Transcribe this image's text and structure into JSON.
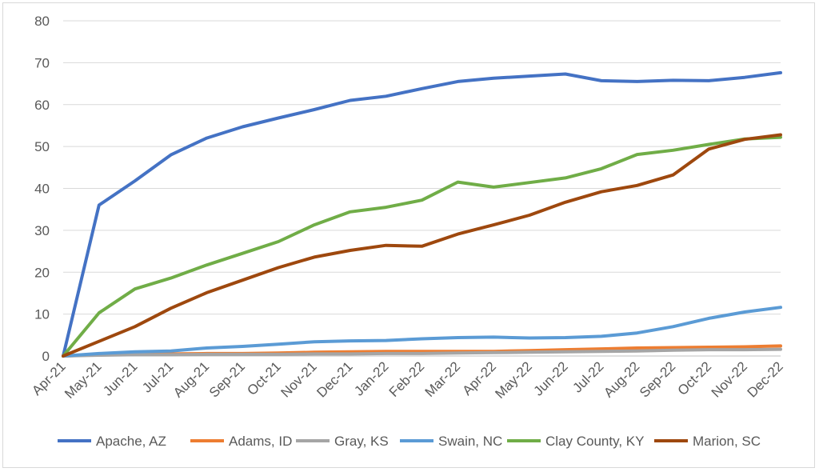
{
  "chart_data": {
    "type": "line",
    "title": "",
    "xlabel": "",
    "ylabel": "",
    "ylim": [
      0,
      80
    ],
    "y_ticks": [
      "0",
      "10",
      "20",
      "30",
      "40",
      "50",
      "60",
      "70",
      "80"
    ],
    "grid": "horizontal",
    "legend_position": "bottom",
    "categories": [
      "Apr-21",
      "May-21",
      "Jun-21",
      "Jul-21",
      "Aug-21",
      "Sep-21",
      "Oct-21",
      "Nov-21",
      "Dec-21",
      "Jan-22",
      "Feb-22",
      "Mar-22",
      "Apr-22",
      "May-22",
      "Jun-22",
      "Jul-22",
      "Aug-22",
      "Sep-22",
      "Oct-22",
      "Nov-22",
      "Dec-22"
    ],
    "series": [
      {
        "name": "Apache, AZ",
        "color": "#4472C4",
        "values": [
          0,
          36,
          41.8,
          48,
          52,
          54.7,
          56.8,
          58.8,
          61,
          62,
          63.8,
          65.5,
          66.3,
          66.8,
          67.3,
          65.7,
          65.5,
          65.8,
          65.7,
          66.5,
          67.6
        ]
      },
      {
        "name": "Adams, ID",
        "color": "#ED7D31",
        "values": [
          0,
          0.3,
          0.4,
          0.5,
          0.6,
          0.6,
          0.7,
          0.9,
          1.0,
          1.1,
          1.1,
          1.1,
          1.1,
          1.3,
          1.5,
          1.7,
          1.9,
          2.0,
          2.1,
          2.2,
          2.4
        ]
      },
      {
        "name": "Gray, KS",
        "color": "#A5A5A5",
        "values": [
          0,
          0.2,
          0.3,
          0.3,
          0.4,
          0.4,
          0.4,
          0.5,
          0.5,
          0.6,
          0.6,
          0.7,
          0.8,
          0.9,
          1.0,
          1.1,
          1.2,
          1.4,
          1.5,
          1.5,
          1.6
        ]
      },
      {
        "name": "Swain, NC",
        "color": "#5B9BD5",
        "values": [
          0,
          0.6,
          1.0,
          1.2,
          1.9,
          2.3,
          2.8,
          3.4,
          3.6,
          3.7,
          4.1,
          4.4,
          4.5,
          4.3,
          4.4,
          4.7,
          5.5,
          7.0,
          9.0,
          10.5,
          11.6
        ]
      },
      {
        "name": "Clay County, KY",
        "color": "#70AD47",
        "values": [
          0,
          10.3,
          16,
          18.6,
          21.7,
          24.5,
          27.3,
          31.3,
          34.4,
          35.5,
          37.2,
          41.5,
          40.3,
          41.4,
          42.5,
          44.7,
          48.1,
          49.1,
          50.5,
          51.8,
          52.2
        ]
      },
      {
        "name": "Marion, SC",
        "color": "#9E480E",
        "values": [
          0,
          3.5,
          7,
          11.4,
          15.1,
          18.1,
          21.1,
          23.6,
          25.2,
          26.4,
          26.2,
          29.1,
          31.3,
          33.6,
          36.7,
          39.2,
          40.7,
          43.2,
          49.4,
          51.7,
          52.8
        ]
      }
    ]
  }
}
